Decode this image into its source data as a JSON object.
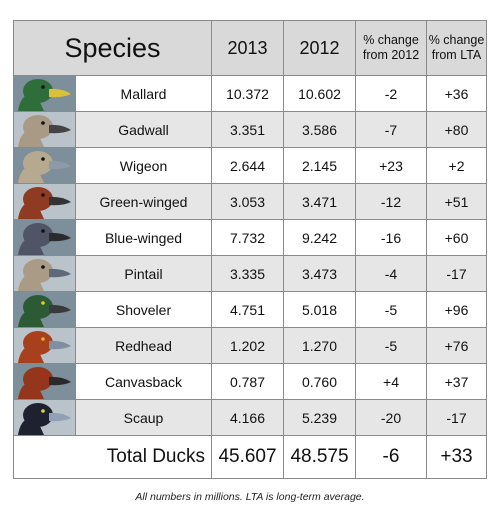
{
  "chart_data": {
    "type": "table",
    "columns": [
      "Species",
      "2013",
      "2012",
      "% change from 2012",
      "% change from LTA"
    ],
    "rows": [
      {
        "species": "Mallard",
        "y2013": "10.372",
        "y2012": "10.602",
        "chg2012": "-2",
        "chgLTA": "+36",
        "head": "#2f6e3a",
        "bill": "#d9c23a",
        "eye": "#111"
      },
      {
        "species": "Gadwall",
        "y2013": "3.351",
        "y2012": "3.586",
        "chg2012": "-7",
        "chgLTA": "+80",
        "head": "#a89a84",
        "bill": "#444444",
        "eye": "#111"
      },
      {
        "species": "Wigeon",
        "y2013": "2.644",
        "y2012": "2.145",
        "chg2012": "+23",
        "chgLTA": "+2",
        "head": "#b7a98f",
        "bill": "#8d9aa8",
        "eye": "#111"
      },
      {
        "species": "Green-winged",
        "y2013": "3.053",
        "y2012": "3.471",
        "chg2012": "-12",
        "chgLTA": "+51",
        "head": "#8e3b22",
        "bill": "#333333",
        "eye": "#111"
      },
      {
        "species": "Blue-winged",
        "y2013": "7.732",
        "y2012": "9.242",
        "chg2012": "-16",
        "chgLTA": "+60",
        "head": "#4f5566",
        "bill": "#2b2b2b",
        "eye": "#111"
      },
      {
        "species": "Pintail",
        "y2013": "3.335",
        "y2012": "3.473",
        "chg2012": "-4",
        "chgLTA": "-17",
        "head": "#a99b86",
        "bill": "#5d6a78",
        "eye": "#111"
      },
      {
        "species": "Shoveler",
        "y2013": "4.751",
        "y2012": "5.018",
        "chg2012": "-5",
        "chgLTA": "+96",
        "head": "#2c5a35",
        "bill": "#3a3a3a",
        "eye": "#e8c830"
      },
      {
        "species": "Redhead",
        "y2013": "1.202",
        "y2012": "1.270",
        "chg2012": "-5",
        "chgLTA": "+76",
        "head": "#a8401e",
        "bill": "#7f8fa0",
        "eye": "#e8b020"
      },
      {
        "species": "Canvasback",
        "y2013": "0.787",
        "y2012": "0.760",
        "chg2012": "+4",
        "chgLTA": "+37",
        "head": "#93361c",
        "bill": "#2a2a2a",
        "eye": "#c02020"
      },
      {
        "species": "Scaup",
        "y2013": "4.166",
        "y2012": "5.239",
        "chg2012": "-20",
        "chgLTA": "-17",
        "head": "#1e2230",
        "bill": "#8fa0b8",
        "eye": "#e8d040"
      }
    ],
    "total": {
      "label": "Total Ducks",
      "y2013": "45.607",
      "y2012": "48.575",
      "chg2012": "-6",
      "chgLTA": "+33"
    }
  },
  "header": {
    "species": "Species",
    "y2013": "2013",
    "y2012": "2012",
    "chg2012_line1": "% change",
    "chg2012_line2": "from 2012",
    "chgLTA_line1": "% change",
    "chgLTA_line2": "from LTA"
  },
  "caption": "All numbers in millions.  LTA is long-term average.",
  "colors": {
    "header_bg": "#d9d9d9",
    "alt_row_bg": "#e6e6e6",
    "border": "#8a8a8a"
  }
}
